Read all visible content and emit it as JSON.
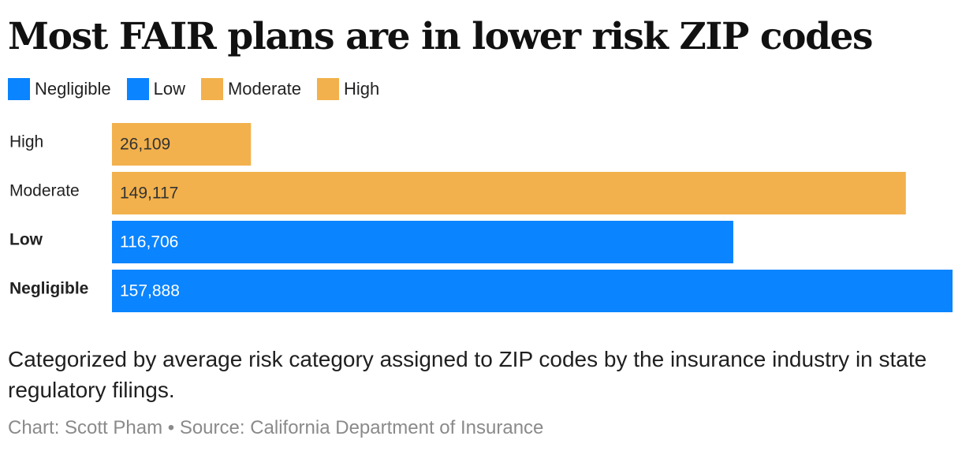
{
  "chart_data": {
    "type": "bar",
    "orientation": "horizontal",
    "title": "Most FAIR plans are in lower risk ZIP codes",
    "subtitle": "Categorized by average risk category assigned to ZIP codes by the insurance industry in state regulatory filings.",
    "credit": "Chart: Scott Pham • Source: California Department of Insurance",
    "legend": [
      {
        "label": "Negligible",
        "color": "#0a84ff"
      },
      {
        "label": "Low",
        "color": "#0a84ff"
      },
      {
        "label": "Moderate",
        "color": "#f2b14c"
      },
      {
        "label": "High",
        "color": "#f2b14c"
      }
    ],
    "categories": [
      "High",
      "Moderate",
      "Low",
      "Negligible"
    ],
    "values": [
      26109,
      149117,
      116706,
      157888
    ],
    "value_labels": [
      "26,109",
      "149,117",
      "116,706",
      "157,888"
    ],
    "colors": [
      "#f2b14c",
      "#f2b14c",
      "#0a84ff",
      "#0a84ff"
    ],
    "label_bold": [
      false,
      false,
      true,
      true
    ],
    "label_text_colors": [
      "#333333",
      "#333333",
      "#ffffff",
      "#ffffff"
    ],
    "xlim": [
      0,
      157888
    ],
    "xlabel": "",
    "ylabel": "",
    "grid": false
  }
}
